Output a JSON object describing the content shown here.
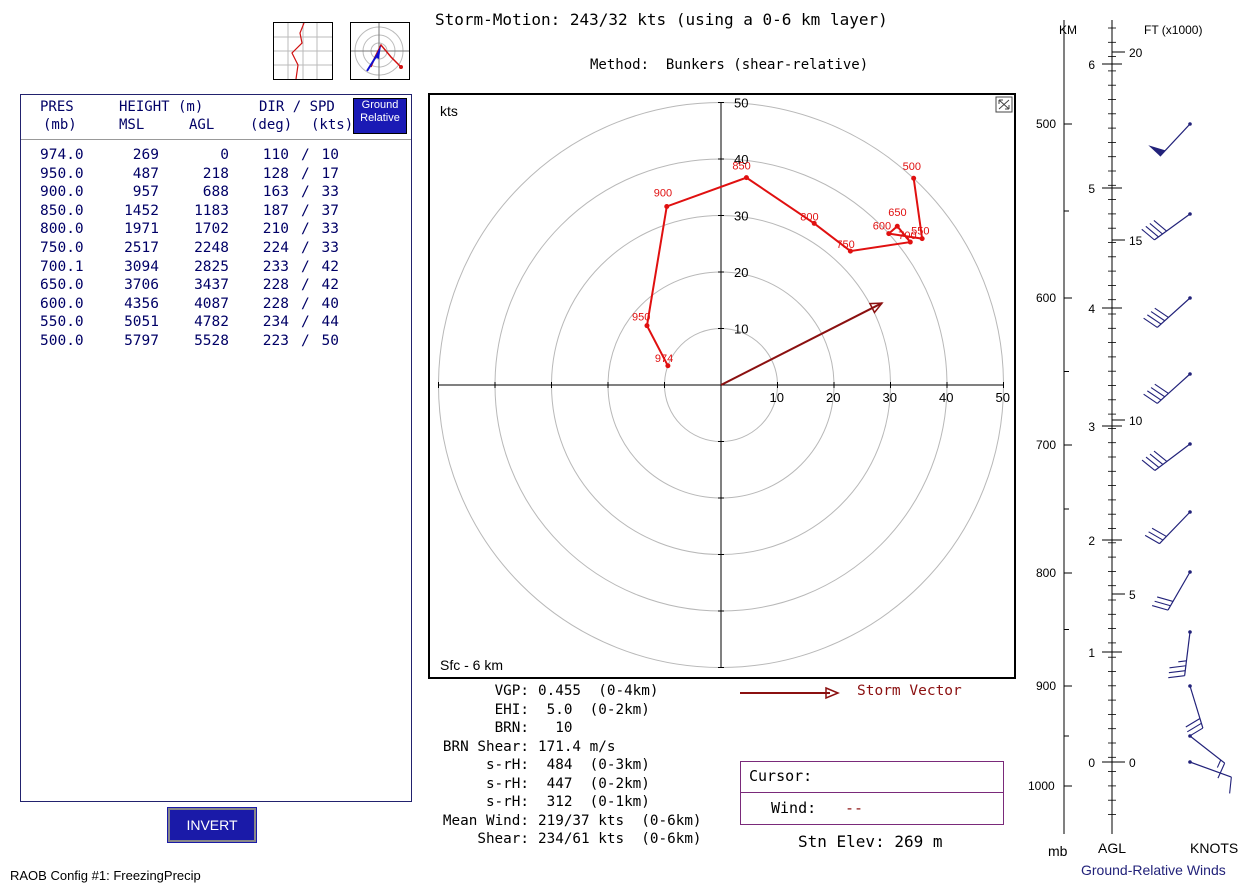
{
  "header": {
    "storm_motion": "Storm-Motion: 243/32 kts (using a 0-6 km layer)",
    "method": "Method:  Bunkers (shear-relative)"
  },
  "thumbnails": {
    "profile_icon": "wind-profile-icon",
    "hodograph_icon": "hodograph-icon"
  },
  "table": {
    "headers": {
      "pres": "PRES",
      "pres_unit": "(mb)",
      "height": "HEIGHT (m)",
      "msl": "MSL",
      "agl": "AGL",
      "dir_spd": "DIR / SPD",
      "dir_unit": "(deg)",
      "spd_unit": "(kts)"
    },
    "ground_relative_button": [
      "Ground",
      "Relative"
    ],
    "rows": [
      {
        "pres": "974.0",
        "msl": "269",
        "agl": "0",
        "dir": "110",
        "spd": "10"
      },
      {
        "pres": "950.0",
        "msl": "487",
        "agl": "218",
        "dir": "128",
        "spd": "17"
      },
      {
        "pres": "900.0",
        "msl": "957",
        "agl": "688",
        "dir": "163",
        "spd": "33"
      },
      {
        "pres": "850.0",
        "msl": "1452",
        "agl": "1183",
        "dir": "187",
        "spd": "37"
      },
      {
        "pres": "800.0",
        "msl": "1971",
        "agl": "1702",
        "dir": "210",
        "spd": "33"
      },
      {
        "pres": "750.0",
        "msl": "2517",
        "agl": "2248",
        "dir": "224",
        "spd": "33"
      },
      {
        "pres": "700.1",
        "msl": "3094",
        "agl": "2825",
        "dir": "233",
        "spd": "42"
      },
      {
        "pres": "650.0",
        "msl": "3706",
        "agl": "3437",
        "dir": "228",
        "spd": "42"
      },
      {
        "pres": "600.0",
        "msl": "4356",
        "agl": "4087",
        "dir": "228",
        "spd": "40"
      },
      {
        "pres": "550.0",
        "msl": "5051",
        "agl": "4782",
        "dir": "234",
        "spd": "44"
      },
      {
        "pres": "500.0",
        "msl": "5797",
        "agl": "5528",
        "dir": "223",
        "spd": "50"
      }
    ]
  },
  "invert_button": "INVERT",
  "config_label": "RAOB Config #1: FreezingPrecip",
  "chart_data": {
    "type": "scatter",
    "units_label": "kts",
    "layer_label": "Sfc - 6 km",
    "rings": [
      10,
      20,
      30,
      40,
      50
    ],
    "xlim": [
      -50,
      50
    ],
    "ylim": [
      -50,
      50
    ],
    "hodograph_points": [
      {
        "label": "974",
        "u": -9.4,
        "v": 3.4
      },
      {
        "label": "950",
        "u": -13.1,
        "v": 10.5
      },
      {
        "label": "900",
        "u": -9.6,
        "v": 31.6
      },
      {
        "label": "850",
        "u": 4.5,
        "v": 36.7
      },
      {
        "label": "800",
        "u": 16.5,
        "v": 28.6
      },
      {
        "label": "750",
        "u": 22.9,
        "v": 23.7
      },
      {
        "label": "700",
        "u": 33.5,
        "v": 25.3
      },
      {
        "label": "650",
        "u": 31.2,
        "v": 28.1
      },
      {
        "label": "600",
        "u": 29.7,
        "v": 26.8
      },
      {
        "label": "550",
        "u": 35.6,
        "v": 25.9
      },
      {
        "label": "500",
        "u": 34.1,
        "v": 36.6
      }
    ],
    "storm_vector": {
      "u": 28.5,
      "v": 14.5
    },
    "hodograph_color": "#e01010",
    "storm_vector_color": "#8b1010"
  },
  "stats": [
    {
      "label": "VGP:",
      "value": "0.455  (0-4km)"
    },
    {
      "label": "EHI:",
      "value": " 5.0  (0-2km)"
    },
    {
      "label": "BRN:",
      "value": "  10"
    },
    {
      "label": "BRN Shear:",
      "value": "171.4 m/s"
    },
    {
      "label": "s-rH:",
      "value": " 484  (0-3km)"
    },
    {
      "label": "s-rH:",
      "value": " 447  (0-2km)"
    },
    {
      "label": "s-rH:",
      "value": " 312  (0-1km)"
    },
    {
      "label": "Mean Wind:",
      "value": "219/37 kts  (0-6km)"
    },
    {
      "label": "Shear:",
      "value": "234/61 kts  (0-6km)"
    }
  ],
  "legend": {
    "storm_vector": "Storm Vector"
  },
  "cursor": {
    "label": "Cursor:",
    "wind_label": "Wind:",
    "wind_value": "--"
  },
  "station_elevation": "Stn Elev: 269 m",
  "barbs": {
    "km_label": "KM",
    "ft_label": "FT (x1000)",
    "mb_label": "mb",
    "agl_label": "AGL",
    "knots_label": "KNOTS",
    "title": "Ground-Relative Winds",
    "pressure_ticks": [
      "500",
      "600",
      "700",
      "800",
      "900",
      "1000"
    ],
    "km_ticks": [
      "6",
      "5",
      "4",
      "3",
      "2",
      "1",
      "0"
    ],
    "ft_ticks": [
      "20",
      "15",
      "10",
      "5",
      "0"
    ],
    "color": "#22227a"
  }
}
